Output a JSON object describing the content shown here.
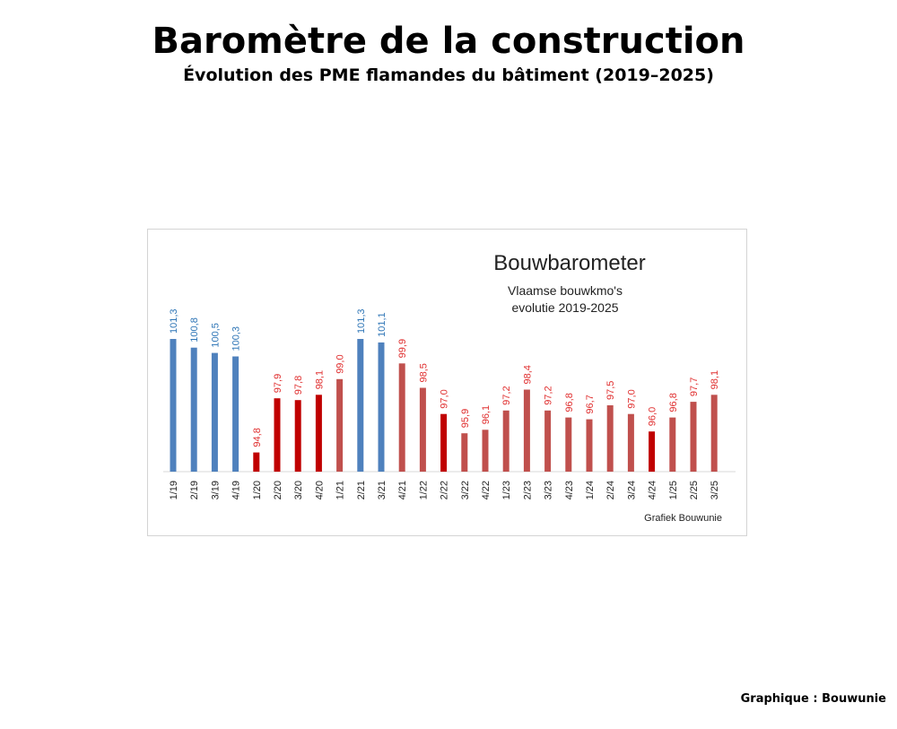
{
  "page": {
    "title": "Baromètre de la construction",
    "subtitle": "Évolution des PME flamandes du bâtiment (2019–2025)",
    "credit": "Graphique : Bouwunie"
  },
  "colors": {
    "blue_bar": "#4f81bd",
    "blue_label": "#2e75b6",
    "red_bar": "#c00000",
    "rose_bar": "#c0504d",
    "red_label": "#e03030",
    "axis": "#d9d9d9"
  },
  "chart_data": {
    "type": "bar",
    "title": "Bouwbarometer",
    "subtitle_lines": [
      "Vlaamse bouwkmo's",
      "evolutie 2019-2025"
    ],
    "source": "Grafiek Bouwunie",
    "xlabel": "",
    "ylabel": "",
    "ylim": [
      93.7,
      101.3
    ],
    "grid": false,
    "legend": "none",
    "categories": [
      "1/19",
      "2/19",
      "3/19",
      "4/19",
      "1/20",
      "2/20",
      "3/20",
      "4/20",
      "1/21",
      "2/21",
      "3/21",
      "4/21",
      "1/22",
      "2/22",
      "3/22",
      "4/22",
      "1/23",
      "2/23",
      "3/23",
      "4/23",
      "1/24",
      "2/24",
      "3/24",
      "4/24",
      "1/25",
      "2/25",
      "3/25"
    ],
    "values": [
      101.3,
      100.8,
      100.5,
      100.3,
      94.8,
      97.9,
      97.8,
      98.1,
      99.0,
      101.3,
      101.1,
      99.9,
      98.5,
      97.0,
      95.9,
      96.1,
      97.2,
      98.4,
      97.2,
      96.8,
      96.7,
      97.5,
      97.0,
      96.0,
      96.8,
      97.7,
      98.1
    ],
    "value_labels": [
      "101,3",
      "100,8",
      "100,5",
      "100,3",
      "94,8",
      "97,9",
      "97,8",
      "98,1",
      "99,0",
      "101,3",
      "101,1",
      "99,9",
      "98,5",
      "97,0",
      "95,9",
      "96,1",
      "97,2",
      "98,4",
      "97,2",
      "96,8",
      "96,7",
      "97,5",
      "97,0",
      "96,0",
      "96,8",
      "97,7",
      "98,1"
    ],
    "bar_color_keys": [
      "blue",
      "blue",
      "blue",
      "blue",
      "red",
      "red",
      "red",
      "red",
      "rose",
      "blue",
      "blue",
      "rose",
      "rose",
      "red",
      "rose",
      "rose",
      "rose",
      "rose",
      "rose",
      "rose",
      "rose",
      "rose",
      "rose",
      "red",
      "rose",
      "rose",
      "rose"
    ]
  }
}
